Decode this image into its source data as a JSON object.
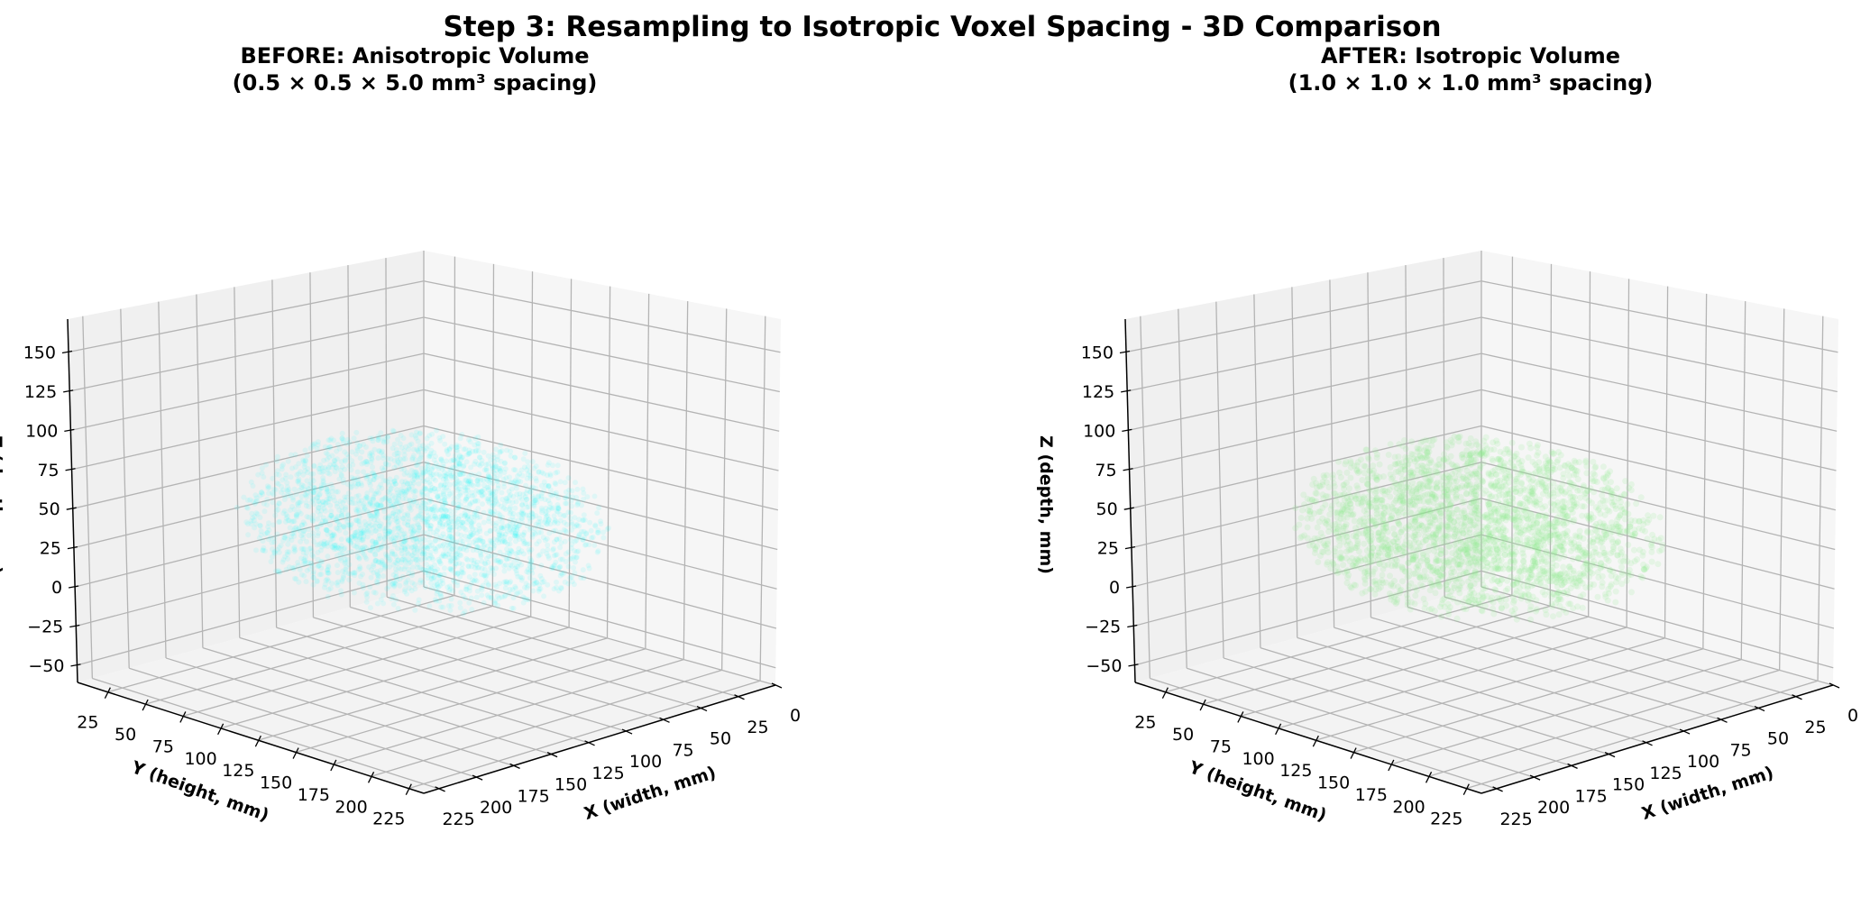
{
  "figure": {
    "title": "Step 3: Resampling to Isotropic Voxel Spacing - 3D Comparison"
  },
  "chart_data": [
    {
      "type": "scatter",
      "projection": "3d",
      "title": "BEFORE: Anisotropic Volume",
      "subtitle": "(0.5 × 0.5 × 5.0 mm³ spacing)",
      "xlabel": "X (width, mm)",
      "ylabel": "Y (height, mm)",
      "zlabel": "Z (depth, mm)",
      "xlim": [
        0,
        235
      ],
      "ylim": [
        5,
        235
      ],
      "zlim": [
        -61,
        171
      ],
      "xticks": [
        0,
        25,
        50,
        75,
        100,
        125,
        150,
        175,
        200,
        225
      ],
      "yticks": [
        25,
        50,
        75,
        100,
        125,
        150,
        175,
        200,
        225
      ],
      "zticks": [
        -50,
        -25,
        0,
        25,
        50,
        75,
        100,
        125,
        150
      ],
      "grid": true,
      "point_color": "#00ffff",
      "point_alpha": 0.05,
      "volume_center": {
        "x": 118,
        "y": 118,
        "z": 50
      },
      "volume_semi_axes": {
        "x": 80,
        "y": 95,
        "z": 55
      }
    },
    {
      "type": "scatter",
      "projection": "3d",
      "title": "AFTER: Isotropic Volume",
      "subtitle": "(1.0 × 1.0 × 1.0 mm³ spacing)",
      "xlabel": "X (width, mm)",
      "ylabel": "Y (height, mm)",
      "zlabel": "Z (depth, mm)",
      "xlim": [
        0,
        235
      ],
      "ylim": [
        5,
        235
      ],
      "zlim": [
        -61,
        171
      ],
      "xticks": [
        0,
        25,
        50,
        75,
        100,
        125,
        150,
        175,
        200,
        225
      ],
      "yticks": [
        25,
        50,
        75,
        100,
        125,
        150,
        175,
        200,
        225
      ],
      "zticks": [
        -50,
        -25,
        0,
        25,
        50,
        75,
        100,
        125,
        150
      ],
      "grid": true,
      "point_color": "#90ee90",
      "point_alpha": 0.12,
      "volume_center": {
        "x": 118,
        "y": 118,
        "z": 45
      },
      "volume_semi_axes": {
        "x": 80,
        "y": 95,
        "z": 55
      }
    }
  ]
}
